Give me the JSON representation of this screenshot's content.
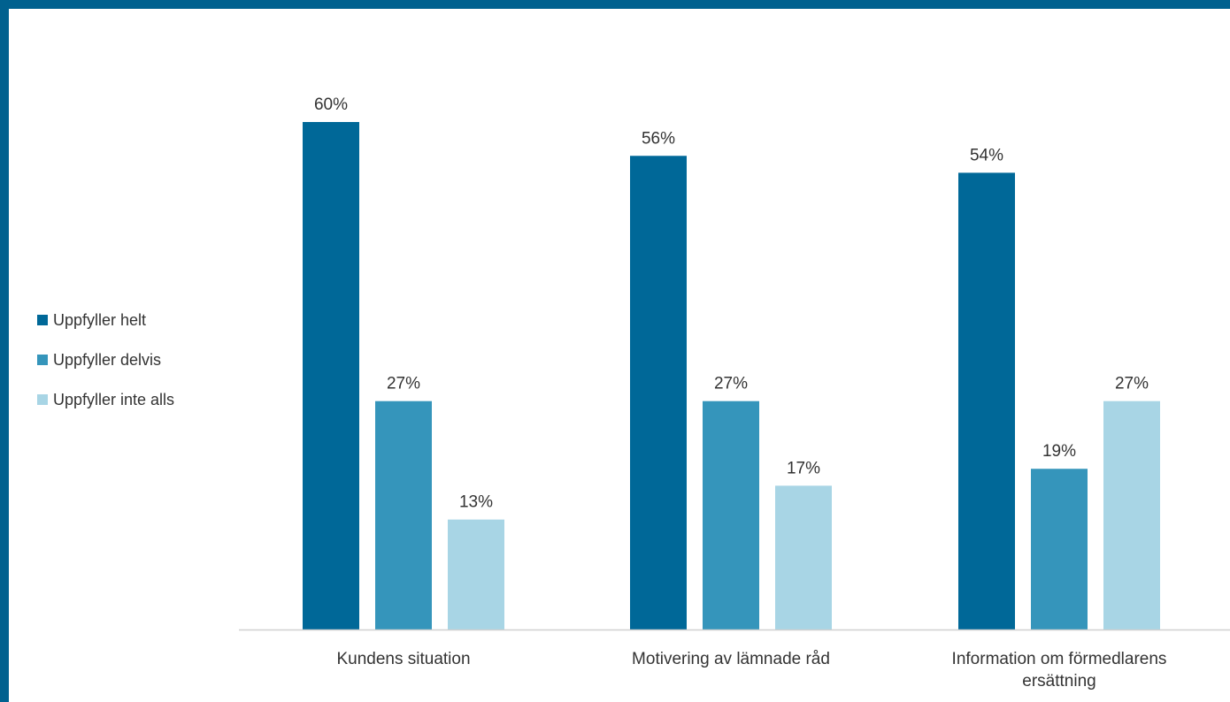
{
  "chart_data": {
    "type": "bar",
    "categories": [
      [
        "Kundens situation"
      ],
      [
        "Motivering av lämnade råd"
      ],
      [
        "Information om förmedlarens",
        "ersättning"
      ]
    ],
    "series": [
      {
        "name": "Uppfyller helt",
        "values": [
          60,
          56,
          54
        ],
        "labels": [
          "60%",
          "56%",
          "54%"
        ],
        "color": "#006898"
      },
      {
        "name": "Uppfyller delvis",
        "values": [
          27,
          27,
          19
        ],
        "labels": [
          "27%",
          "27%",
          "19%"
        ],
        "color": "#3595bb"
      },
      {
        "name": "Uppfyller inte alls",
        "values": [
          13,
          17,
          27
        ],
        "labels": [
          "13%",
          "17%",
          "27%"
        ],
        "color": "#a8d5e5"
      }
    ],
    "ylim": [
      0,
      60
    ],
    "unit": "%",
    "grid": false,
    "legend_position": "left",
    "axis_color": "#d0d0d0",
    "frame_color": "#00618f"
  }
}
